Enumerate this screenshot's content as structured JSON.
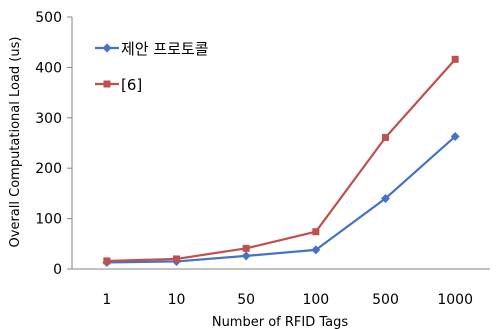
{
  "chart_data": {
    "type": "line",
    "categories": [
      "1",
      "10",
      "50",
      "100",
      "500",
      "1000"
    ],
    "series": [
      {
        "name": "제안 프로토콜",
        "values": [
          13,
          15,
          26,
          38,
          140,
          263
        ],
        "color": "#4472C4",
        "marker": "diamond"
      },
      {
        "name": "[6]",
        "values": [
          16,
          20,
          41,
          74,
          261,
          416
        ],
        "color": "#C0504D",
        "marker": "square"
      }
    ],
    "xlabel": "Number of RFID Tags",
    "ylabel": "Overall Computational Load (us)",
    "ylim": [
      0,
      500
    ],
    "yticks": [
      0,
      100,
      200,
      300,
      400,
      500
    ],
    "grid": false,
    "legend_position": "top-left"
  }
}
